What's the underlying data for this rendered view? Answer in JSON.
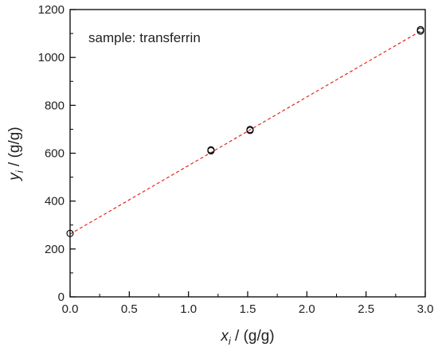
{
  "chart_data": {
    "type": "scatter",
    "annotation": "sample: transferrin",
    "xlabel": {
      "symbol": "x",
      "subscript": "i",
      "rest": " / (g/g)"
    },
    "ylabel": {
      "symbol": "y",
      "subscript": "i",
      "rest": " / (g/g)"
    },
    "xlim": [
      0.0,
      3.0
    ],
    "ylim": [
      0,
      1200
    ],
    "xticks": [
      "0.0",
      "0.5",
      "1.0",
      "1.5",
      "2.0",
      "2.5",
      "3.0"
    ],
    "yticks": [
      "0",
      "200",
      "400",
      "600",
      "800",
      "1000",
      "1200"
    ],
    "grid": false,
    "series": [
      {
        "points": [
          {
            "x": 0.0,
            "y": 265
          },
          {
            "x": 1.19,
            "y": 610
          },
          {
            "x": 1.19,
            "y": 614
          },
          {
            "x": 1.52,
            "y": 695
          },
          {
            "x": 1.52,
            "y": 699
          },
          {
            "x": 2.96,
            "y": 1110
          },
          {
            "x": 2.96,
            "y": 1116
          }
        ],
        "color": "#000000",
        "marker": "open-circle"
      }
    ],
    "fit_line": {
      "x": [
        0.0,
        2.96
      ],
      "y": [
        262,
        1110
      ],
      "color": "#e8251c",
      "style": "dashed"
    }
  }
}
